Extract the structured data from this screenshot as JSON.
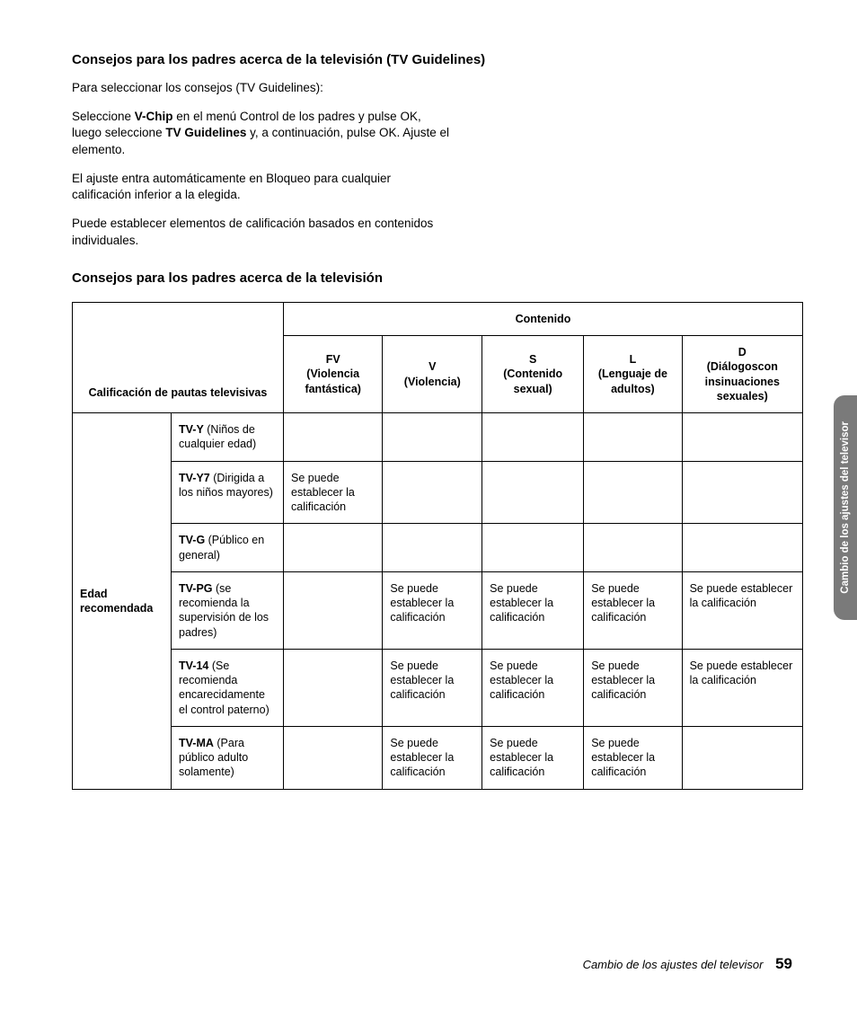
{
  "heading1": "Consejos para los padres acerca de la televisión (TV Guidelines)",
  "intro": "Para seleccionar los consejos (TV Guidelines):",
  "p1_a": "Seleccione ",
  "p1_b": "V-Chip",
  "p1_c": " en el menú Control de los padres y pulse OK, luego seleccione ",
  "p1_d": "TV Guidelines",
  "p1_e": " y, a continuación, pulse OK. Ajuste el elemento.",
  "p2": "El ajuste entra automáticamente en Bloqueo para cualquier calificación inferior a la elegida.",
  "p3": "Puede establecer elementos de calificación basados en contenidos individuales.",
  "heading2": "Consejos para los padres acerca de la televisión",
  "table": {
    "topHeader": "Contenido",
    "leftHeader": "Calificación de pautas televisivas",
    "ageHeader": "Edad recomendada",
    "cols": {
      "fv_b": "FV",
      "fv_t": "(Violencia fantástica)",
      "v_b": "V",
      "v_t": "(Violencia)",
      "s_b": "S",
      "s_t": "(Contenido sexual)",
      "l_b": "L",
      "l_t": "(Lenguaje de adultos)",
      "d_b": "D",
      "d_t": "(Diálogoscon insinuaciones sexuales)"
    },
    "cellText": "Se puede establecer la calificación",
    "rows": [
      {
        "code": "TV-Y",
        "desc": " (Niños de cualquier edad)",
        "fv": "",
        "v": "",
        "s": "",
        "l": "",
        "d": ""
      },
      {
        "code": "TV-Y7",
        "desc": " (Dirigida a los niños mayores)",
        "fv": "1",
        "v": "",
        "s": "",
        "l": "",
        "d": ""
      },
      {
        "code": "TV-G",
        "desc": " (Público en general)",
        "fv": "",
        "v": "",
        "s": "",
        "l": "",
        "d": ""
      },
      {
        "code": "TV-PG",
        "desc": " (se recomienda la supervisión de los padres)",
        "fv": "",
        "v": "1",
        "s": "1",
        "l": "1",
        "d": "1"
      },
      {
        "code": "TV-14",
        "desc": " (Se recomienda encarecidamente el control paterno)",
        "fv": "",
        "v": "1",
        "s": "1",
        "l": "1",
        "d": "1"
      },
      {
        "code": "TV-MA",
        "desc": " (Para público adulto solamente)",
        "fv": "",
        "v": "1",
        "s": "1",
        "l": "1",
        "d": ""
      }
    ]
  },
  "tab": "Cambio de los ajustes del televisor",
  "footerSection": "Cambio de los ajustes del televisor",
  "pageNumber": "59"
}
